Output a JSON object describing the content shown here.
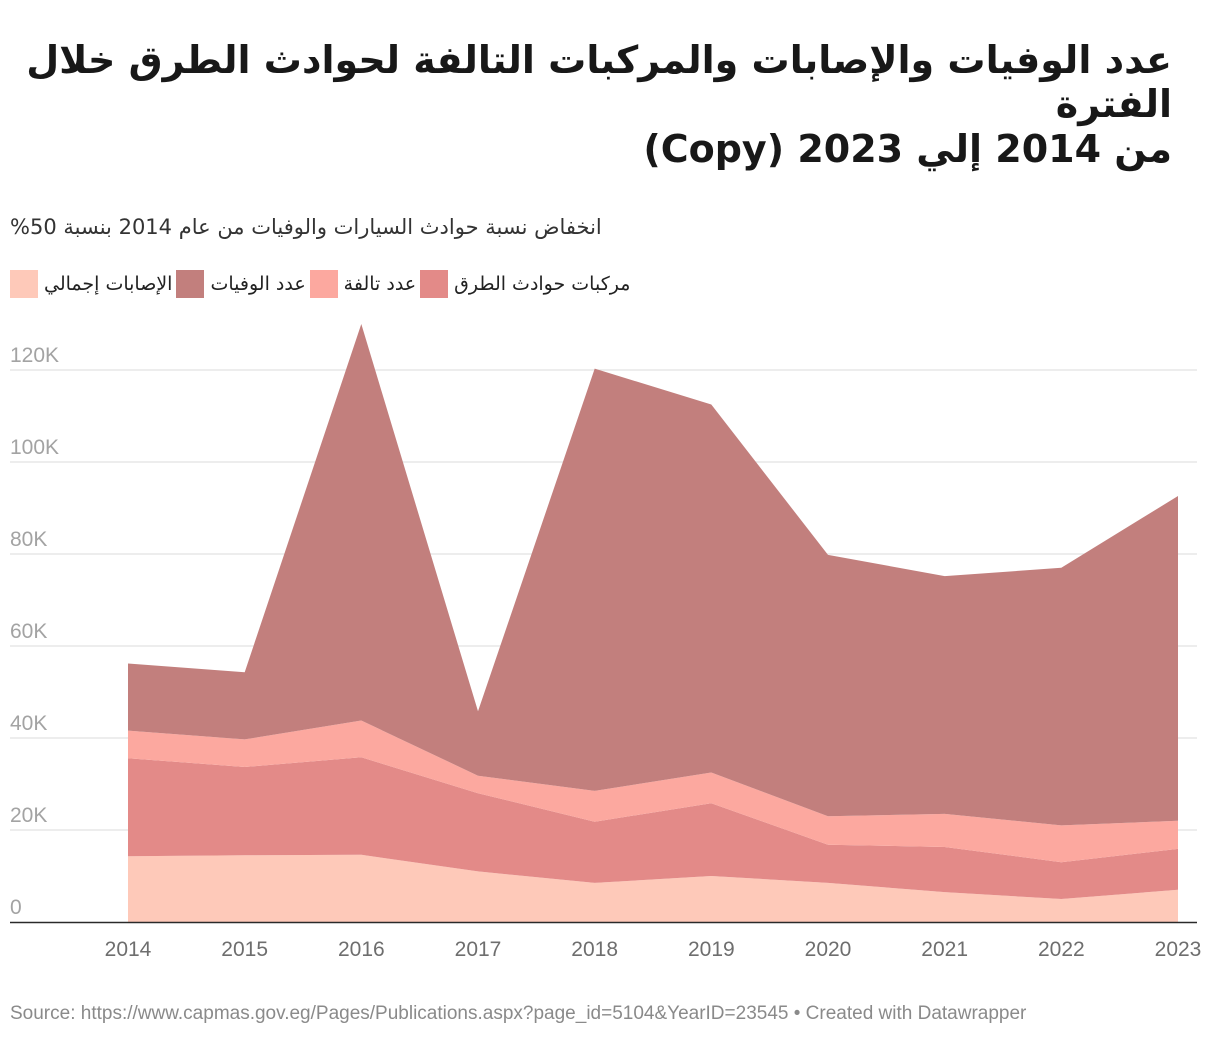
{
  "header": {
    "title_line1": "عدد الوفيات والإصابات والمركبات التالفة لحوادث الطرق خلال الفترة",
    "title_line2": "من 2014 إلي 2023 (Copy)",
    "subtitle": "%انخفاض نسبة حوادث السيارات والوفيات من عام 2014 بنسبة 50"
  },
  "legend": {
    "items": [
      {
        "label": "الإصابات إجمالي",
        "color": "#fec9b9"
      },
      {
        "label": "عدد   الوفيات",
        "color": "#c27f7d"
      },
      {
        "label": "عدد   تالفة",
        "color": "#fca89f"
      },
      {
        "label": "مركبات   حوادث الطرق",
        "color": "#e38a88"
      }
    ]
  },
  "chart_data": {
    "type": "area",
    "stacked": true,
    "x": [
      "2014",
      "2015",
      "2016",
      "2017",
      "2018",
      "2019",
      "2020",
      "2021",
      "2022",
      "2023"
    ],
    "y_ticks": [
      "0",
      "20K",
      "40K",
      "60K",
      "80K",
      "100K",
      "120K"
    ],
    "ylim": [
      0,
      130000
    ],
    "series": [
      {
        "name": "الإصابات إجمالي",
        "color": "#fec9b9",
        "values": [
          14300,
          14500,
          14600,
          11000,
          8500,
          10000,
          8500,
          6500,
          5000,
          7000
        ]
      },
      {
        "name": "مركبات حوادث الطرق",
        "color": "#e38a88",
        "values": [
          21300,
          19200,
          21200,
          17000,
          13300,
          15800,
          8300,
          9800,
          8000,
          8900
        ]
      },
      {
        "name": "عدد تالفة",
        "color": "#fca89f",
        "values": [
          6000,
          6000,
          8000,
          3800,
          6700,
          6700,
          6200,
          7200,
          8000,
          6100
        ]
      },
      {
        "name": "عدد الوفيات",
        "color": "#c27f7d",
        "values": [
          14600,
          14600,
          86200,
          14000,
          91800,
          80000,
          56800,
          51700,
          56000,
          70600
        ]
      }
    ]
  },
  "footer": {
    "source": "Source: https://www.capmas.gov.eg/Pages/Publications.aspx?page_id=5104&YearID=23545 • Created with Datawrapper"
  }
}
